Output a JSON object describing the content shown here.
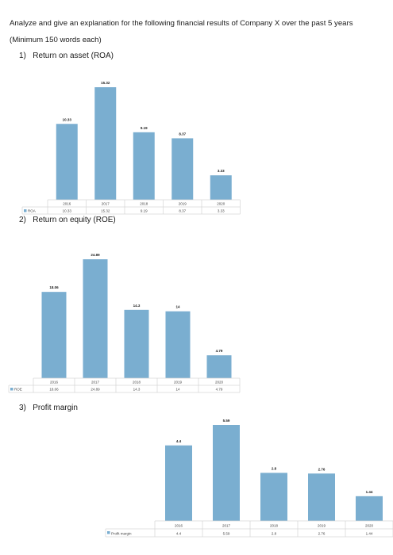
{
  "intro": "Analyze and give an explanation for the following financial results of Company X  over the past 5 years",
  "intro_sub": "(Minimum 150 words each)",
  "questions": [
    {
      "num": "1)",
      "title": "Return on asset (ROA)"
    },
    {
      "num": "2)",
      "title": "Return on equity (ROE)"
    },
    {
      "num": "3)",
      "title": "Profit margin"
    }
  ],
  "colors": {
    "bar": "#7aaed0",
    "grid": "#d6d6d6",
    "label": "#444444"
  },
  "chart_data": [
    {
      "type": "bar",
      "categories": [
        "2016",
        "2017",
        "2018",
        "2019",
        "2020"
      ],
      "series": [
        {
          "name": "ROA",
          "values": [
            10.33,
            15.32,
            9.19,
            8.37,
            3.33
          ]
        }
      ],
      "data_labels": [
        "10.33",
        "15.32",
        "9.19",
        "8.37",
        "3.33"
      ],
      "table_values": [
        "10.33",
        "15.32",
        "9.19",
        "8.37",
        "3.33"
      ],
      "legend": "data-table"
    },
    {
      "type": "bar",
      "categories": [
        "2016",
        "2017",
        "2018",
        "2019",
        "2020"
      ],
      "series": [
        {
          "name": "ROE",
          "values": [
            18.06,
            24.89,
            14.3,
            14,
            4.79
          ]
        }
      ],
      "data_labels": [
        "18.06",
        "24.89",
        "14.3",
        "14",
        "4.79"
      ],
      "table_values": [
        "18.06",
        "24.89",
        "14.3",
        "14",
        "4.79"
      ],
      "legend": "data-table"
    },
    {
      "type": "bar",
      "categories": [
        "2016",
        "2017",
        "2018",
        "2019",
        "2020"
      ],
      "series": [
        {
          "name": "Profit margin",
          "values": [
            4.4,
            5.59,
            2.8,
            2.76,
            1.44
          ]
        }
      ],
      "data_labels": [
        "4.4",
        "5.59",
        "2.8",
        "2.76",
        "1.44"
      ],
      "table_values": [
        "4.4",
        "5.59",
        "2.8",
        "2.76",
        "1.44"
      ],
      "legend": "data-table"
    }
  ]
}
